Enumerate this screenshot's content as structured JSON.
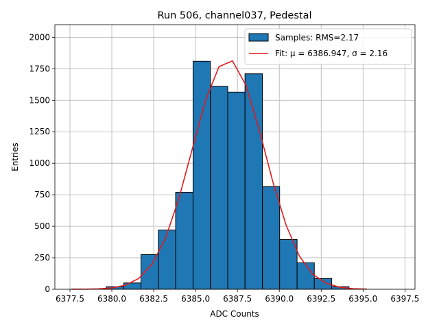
{
  "chart_data": {
    "type": "histogram",
    "title": "Run 506, channel037, Pedestal",
    "xlabel": "ADC Counts",
    "ylabel": "Entries",
    "name": "Samples: RMS=2.17",
    "color": "#1f77b4",
    "edgecolor": "#000000",
    "bins": [
      6377.6,
      6378.64,
      6379.67,
      6380.71,
      6381.74,
      6382.78,
      6383.81,
      6384.85,
      6385.88,
      6386.92,
      6387.95,
      6388.99,
      6390.02,
      6391.06,
      6392.09,
      6393.13,
      6394.16,
      6395.2
    ],
    "counts": [
      1,
      2,
      20,
      50,
      275,
      470,
      770,
      1810,
      1610,
      1565,
      1710,
      815,
      395,
      210,
      85,
      20,
      3
    ],
    "fit": {
      "type": "line",
      "name": "Fit: μ = 6386.947, σ = 2.16",
      "color": "#e41a1c",
      "x": [
        6377.6,
        6378.4,
        6379.2,
        6380.0,
        6380.8,
        6381.6,
        6382.4,
        6383.2,
        6384.0,
        6384.8,
        6385.6,
        6386.4,
        6387.2,
        6388.0,
        6388.8,
        6389.6,
        6390.4,
        6391.2,
        6392.0,
        6392.8,
        6393.6,
        6394.4,
        6395.2
      ],
      "values": [
        0.2,
        0.7,
        2.9,
        10.3,
        31.7,
        85,
        198,
        404,
        718,
        1112,
        1502,
        1767,
        1813,
        1621,
        1265,
        860,
        510,
        263,
        119,
        47,
        16,
        4.8,
        1.2
      ]
    },
    "xlim": [
      6376.6,
      6398.1
    ],
    "xticks": [
      6377.5,
      {
        "value": 6380,
        "label": "6380.0"
      },
      6382.5,
      {
        "value": 6385,
        "label": "6385.0"
      },
      6387.5,
      {
        "value": 6390,
        "label": "6390.0"
      },
      6392.5,
      {
        "value": 6395,
        "label": "6395.0"
      },
      6397.5
    ],
    "ylim": [
      0,
      2100
    ],
    "yticks": [
      0,
      250,
      500,
      750,
      1000,
      1250,
      1500,
      1750,
      2000
    ],
    "grid": true,
    "legend": "upper right"
  }
}
